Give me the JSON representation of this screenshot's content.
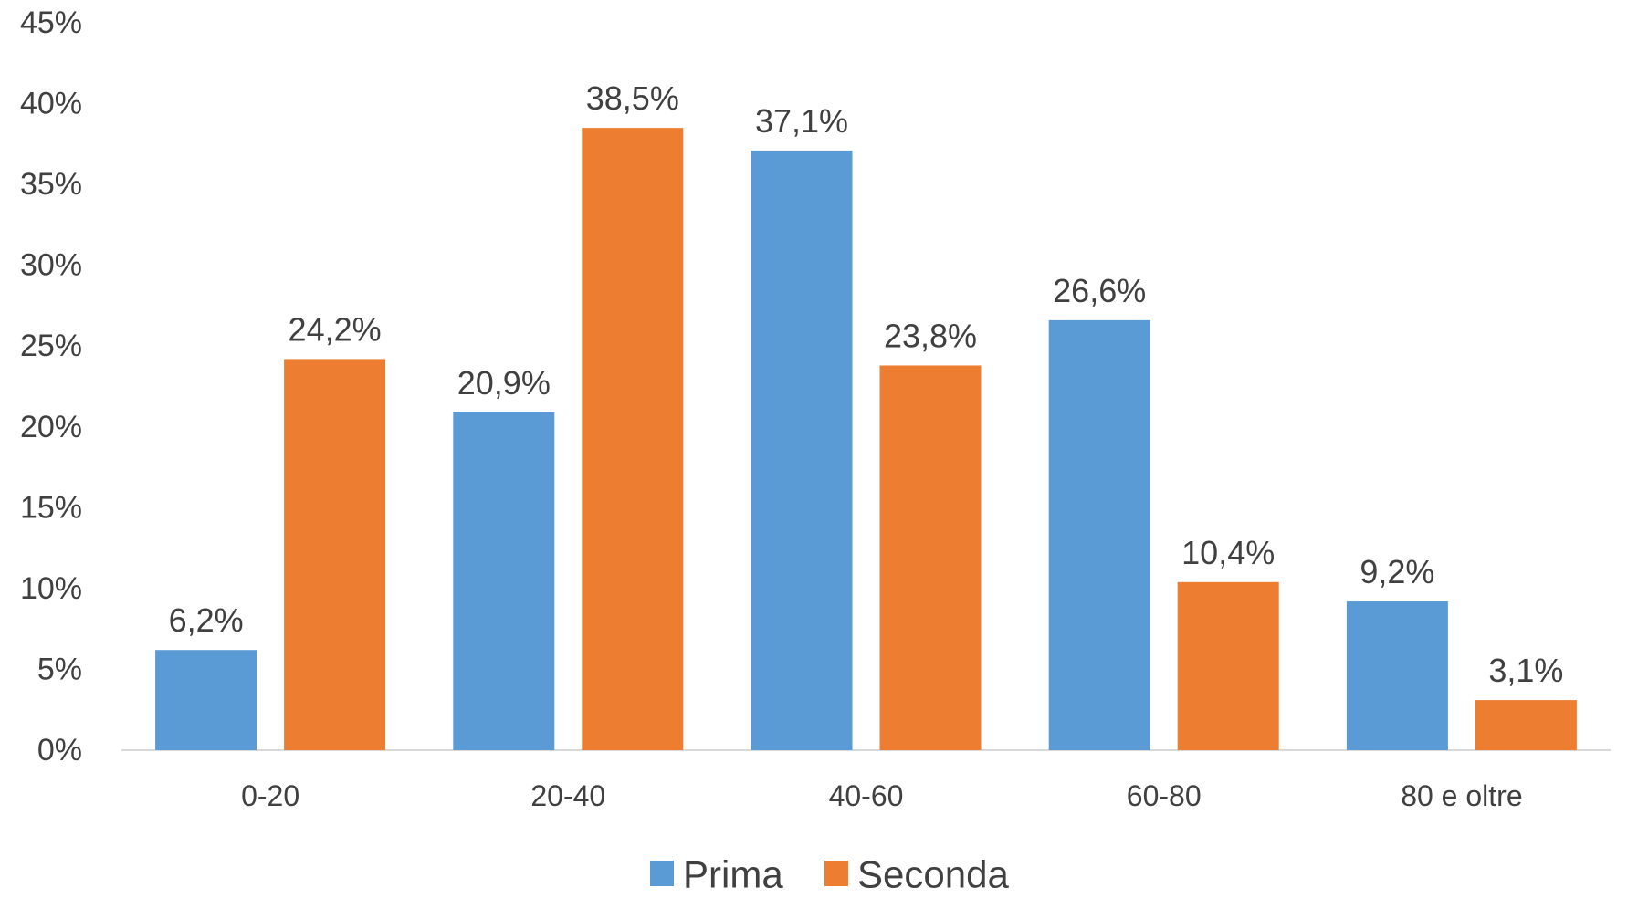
{
  "chart_data": {
    "type": "bar",
    "title": "",
    "xlabel": "",
    "ylabel": "",
    "categories": [
      "0-20",
      "20-40",
      "40-60",
      "60-80",
      "80 e oltre"
    ],
    "series": [
      {
        "name": "Prima",
        "color": "#5B9BD5",
        "values": [
          6.2,
          20.9,
          37.1,
          26.6,
          9.2
        ],
        "labels": [
          "6,2%",
          "20,9%",
          "37,1%",
          "26,6%",
          "9,2%"
        ]
      },
      {
        "name": "Seconda",
        "color": "#ED7D31",
        "values": [
          24.2,
          38.5,
          23.8,
          10.4,
          3.1
        ],
        "labels": [
          "24,2%",
          "38,5%",
          "23,8%",
          "10,4%",
          "3,1%"
        ]
      }
    ],
    "ylim": [
      0,
      45
    ],
    "yticks": [
      0,
      5,
      10,
      15,
      20,
      25,
      30,
      35,
      40,
      45
    ],
    "ytick_labels": [
      "0%",
      "5%",
      "10%",
      "15%",
      "20%",
      "25%",
      "30%",
      "35%",
      "40%",
      "45%"
    ],
    "grid": false,
    "legend_position": "bottom"
  }
}
